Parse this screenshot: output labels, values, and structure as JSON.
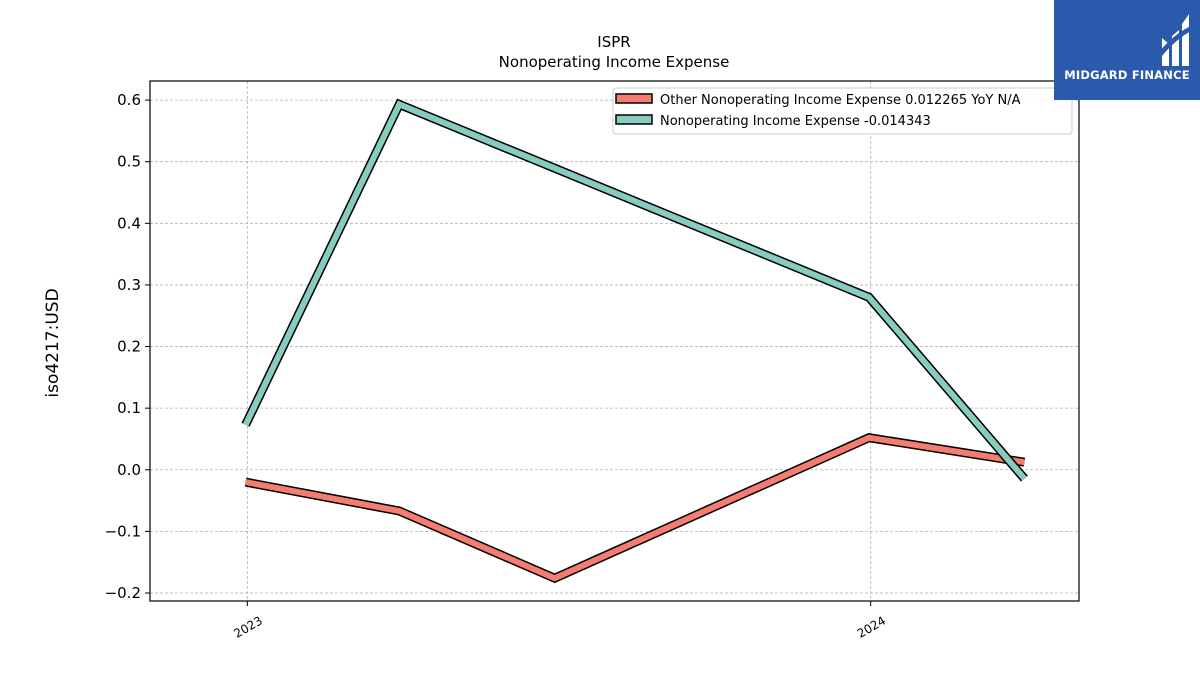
{
  "brand": {
    "name": "MIDGARD FINANCE",
    "bg": "#2b5aad"
  },
  "chart_data": {
    "type": "line",
    "title": "ISPR",
    "subtitle": "Nonoperating Income Expense",
    "ylabel": "iso4217:USD",
    "xlabel": "",
    "xlim": [
      "2022-11-05",
      "2024-05-02"
    ],
    "ylim": [
      -0.213,
      0.631
    ],
    "yticks": [
      -0.2,
      -0.1,
      0.0,
      0.1,
      0.2,
      0.3,
      0.4,
      0.5,
      0.6
    ],
    "ytick_labels": [
      "−0.2",
      "−0.1",
      "0.0",
      "0.1",
      "0.2",
      "0.3",
      "0.4",
      "0.5",
      "0.6"
    ],
    "xticks": [
      "2023-01-01",
      "2024-01-01"
    ],
    "xtick_labels": [
      "2023",
      "2024"
    ],
    "grid": true,
    "legend_position": "top-right",
    "series": [
      {
        "name": "Other Nonoperating Income Expense  0.012265 YoY N/A",
        "color": "#f47c70",
        "x": [
          "2022-12-31",
          "2023-03-31",
          "2023-06-30",
          "2023-12-31",
          "2024-03-31"
        ],
        "y": [
          -0.02,
          -0.067,
          -0.176,
          0.052,
          0.012265
        ]
      },
      {
        "name": "Nonoperating Income Expense  -0.014343",
        "color": "#86cdbf",
        "x": [
          "2022-12-31",
          "2023-03-31",
          "2023-12-31",
          "2024-03-31"
        ],
        "y": [
          0.073,
          0.593,
          0.28,
          -0.014343
        ]
      }
    ]
  }
}
